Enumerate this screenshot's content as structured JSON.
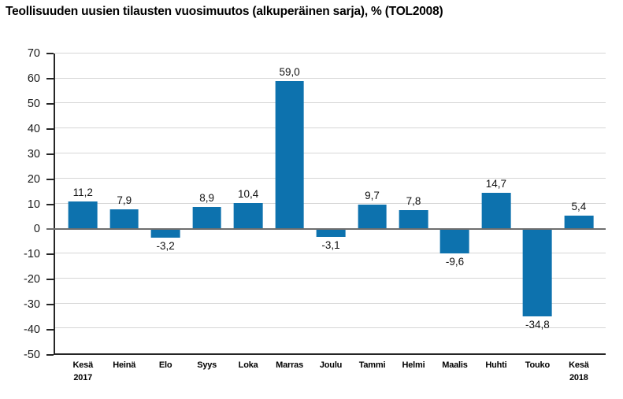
{
  "title": "Teollisuuden uusien tilausten vuosimuutos (alkuperäinen sarja), % (TOL2008)",
  "colors": {
    "bar": "#0d72ae",
    "grid": "#d6d6d6",
    "axis": "#262626",
    "zero_line": "#6e6e6e",
    "text": "#000000"
  },
  "chart_data": {
    "type": "bar",
    "title": "Teollisuuden uusien tilausten vuosimuutos (alkuperäinen sarja), % (TOL2008)",
    "categories": [
      "Kesä\n2017",
      "Heinä",
      "Elo",
      "Syys",
      "Loka",
      "Marras",
      "Joulu",
      "Tammi",
      "Helmi",
      "Maalis",
      "Huhti",
      "Touko",
      "Kesä\n2018"
    ],
    "values": [
      11.2,
      7.9,
      -3.2,
      8.9,
      10.4,
      59.0,
      -3.1,
      9.7,
      7.8,
      -9.6,
      14.7,
      -34.8,
      5.4
    ],
    "value_labels": [
      "11,2",
      "7,9",
      "-3,2",
      "8,9",
      "10,4",
      "59,0",
      "-3,1",
      "9,7",
      "7,8",
      "-9,6",
      "14,7",
      "-34,8",
      "5,4"
    ],
    "ylim": [
      -50,
      70
    ],
    "yticks": [
      70,
      60,
      50,
      40,
      30,
      20,
      10,
      0,
      -10,
      -20,
      -30,
      -40,
      -50
    ],
    "grid": true,
    "legend": false,
    "xlabel": "",
    "ylabel": ""
  }
}
